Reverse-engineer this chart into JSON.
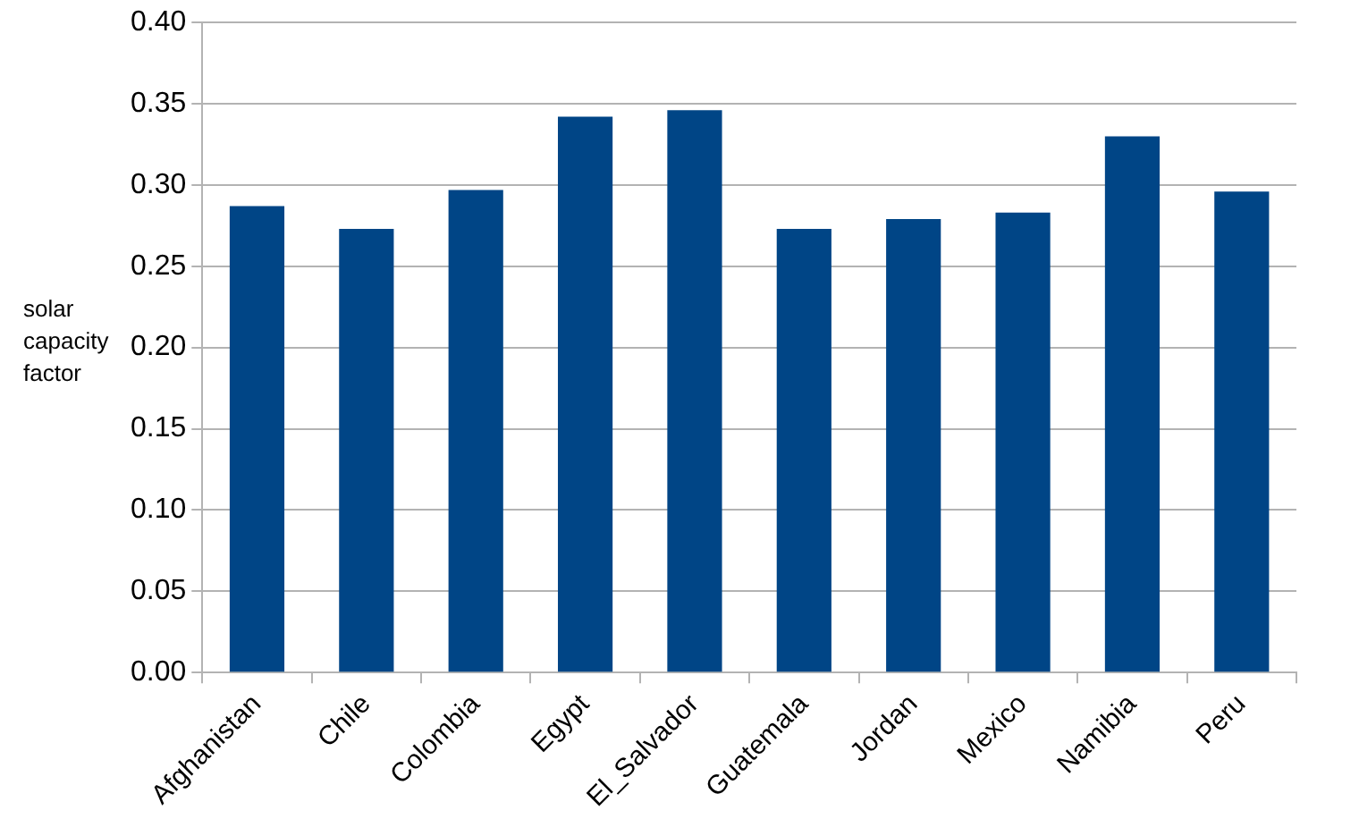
{
  "chart_data": {
    "type": "bar",
    "ylabel": "solar capacity factor",
    "categories": [
      "Afghanistan",
      "Chile",
      "Colombia",
      "Egypt",
      "El_Salvador",
      "Guatemala",
      "Jordan",
      "Mexico",
      "Namibia",
      "Peru"
    ],
    "values": [
      0.287,
      0.273,
      0.297,
      0.342,
      0.346,
      0.273,
      0.279,
      0.283,
      0.33,
      0.296
    ],
    "color": "#004586",
    "ylim": [
      0,
      0.4
    ],
    "yticks": [
      {
        "value": 0,
        "label": "0.00"
      },
      {
        "value": 0.05,
        "label": "0.05"
      },
      {
        "value": 0.1,
        "label": "0.10"
      },
      {
        "value": 0.15,
        "label": "0.15"
      },
      {
        "value": 0.2,
        "label": "0.20"
      },
      {
        "value": 0.25,
        "label": "0.25"
      },
      {
        "value": 0.3,
        "label": "0.30"
      },
      {
        "value": 0.35,
        "label": "0.35"
      },
      {
        "value": 0.4,
        "label": "0.40"
      }
    ],
    "grid": "y",
    "legend": false
  }
}
